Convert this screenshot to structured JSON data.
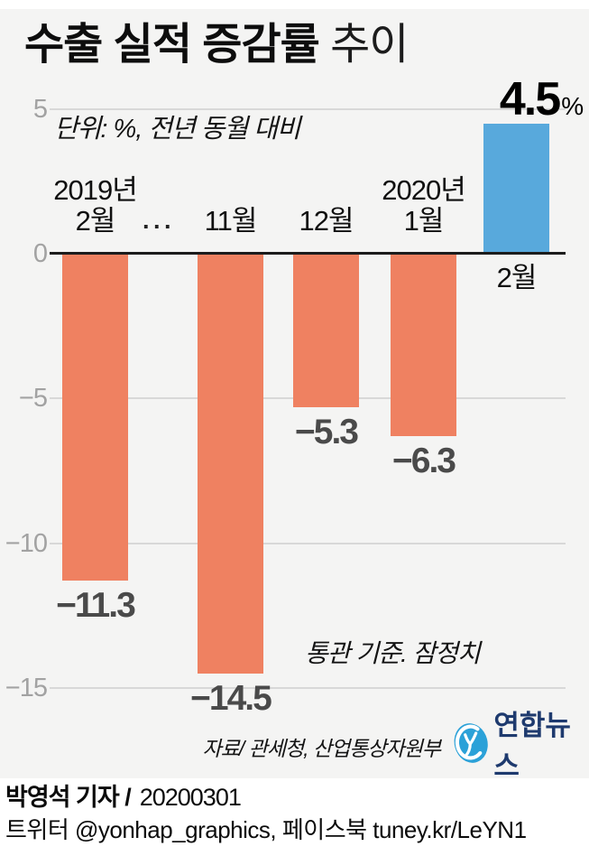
{
  "title": {
    "strong": "수출 실적 증감률",
    "light": " 추이"
  },
  "subtitle": "단위: %, 전년 동월 대비",
  "source": "자료/ 관세청, 산업통상자원부",
  "logo": {
    "name": "연합뉴스"
  },
  "footer": {
    "byline": "박영석 기자 /",
    "date": "20200301",
    "social": "트위터 @yonhap_graphics, 페이스북 tuney.kr/LeYN1"
  },
  "chart_data": {
    "type": "bar",
    "title": "수출 실적 증감률 추이",
    "unit_note": "단위: %, 전년 동월 대비",
    "note": "통관 기준. 잠정치",
    "ylim": [
      -16.5,
      6.5
    ],
    "grid": true,
    "yticks": [
      {
        "value": 5,
        "label": "5"
      },
      {
        "value": 0,
        "label": "0"
      },
      {
        "value": -5,
        "label": "−5"
      },
      {
        "value": -10,
        "label": "−10"
      },
      {
        "value": -15,
        "label": "−15"
      }
    ],
    "bars": [
      {
        "category": "2019년 2월",
        "year_label": "2019년",
        "month_label": "2월",
        "value": -11.3,
        "value_label": "−11.3"
      },
      {
        "category": "2019년 11월",
        "month_label": "11월",
        "value": -14.5,
        "value_label": "−14.5"
      },
      {
        "category": "2019년 12월",
        "month_label": "12월",
        "value": -5.3,
        "value_label": "−5.3"
      },
      {
        "category": "2020년 1월",
        "year_label": "2020년",
        "month_label": "1월",
        "value": -6.3,
        "value_label": "−6.3"
      },
      {
        "category": "2020년 2월",
        "month_label": "2월",
        "value": 4.5,
        "value_label": "4.5",
        "value_suffix": "%"
      }
    ],
    "ellipsis": "···",
    "ellipsis_after_index": 0,
    "colors": {
      "negative_bar": "#ef8161",
      "positive_bar": "#58a9dc",
      "grid": "#d8d8d8",
      "zero_line": "#1c1c1c",
      "tick_label": "#a2a2a2",
      "value_label": "#4a4a4a",
      "panel_bg": "#f4f4f3",
      "logo_blue": "#2ba1d8",
      "logo_navy": "#1e3a6e"
    }
  }
}
